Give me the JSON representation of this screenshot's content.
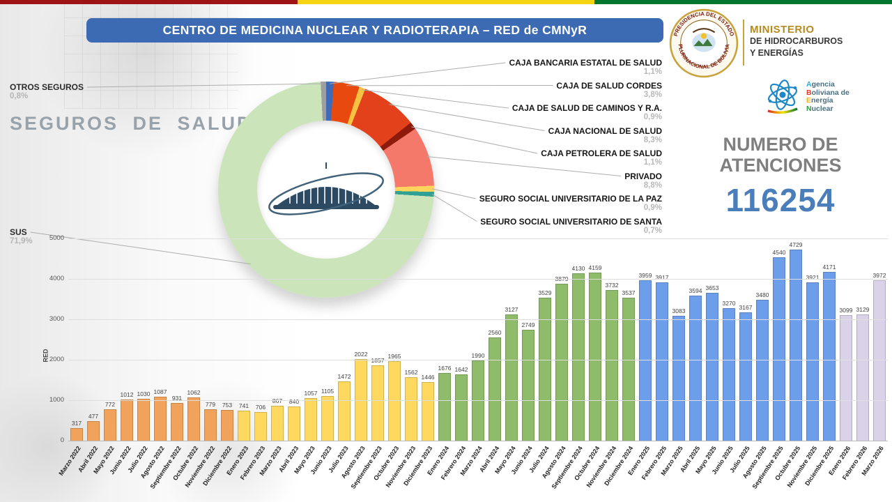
{
  "flag_strip": {
    "colors": [
      "#9E1313",
      "#F6D411",
      "#00792E"
    ]
  },
  "banner": {
    "title": "CENTRO DE MEDICINA NUCLEAR Y RADIOTERAPIA – RED de CMNyR",
    "bg_color": "#3C6BB3"
  },
  "ministry": {
    "seal_top": "PRESIDENCIA DEL ESTADO",
    "seal_bottom": "PLURINACIONAL DE BOLIVIA",
    "name_line1": "MINISTERIO",
    "name_line2": "DE HIDROCARBUROS",
    "name_line3": "Y ENERGÍAS",
    "accent_color": "#B58A1E"
  },
  "aben": {
    "words": [
      {
        "first": "A",
        "rest": "gencia",
        "color": "#29ABE2"
      },
      {
        "first": "B",
        "rest": "oliviana de",
        "color": "#E23A2E"
      },
      {
        "first": "E",
        "rest": "nergía",
        "color": "#F5B31C"
      },
      {
        "first": "N",
        "rest": "uclear",
        "color": "#2E9C42"
      }
    ],
    "text_color": "#4A6F80"
  },
  "atenciones": {
    "line1": "NUMERO DE",
    "line2": "ATENCIONES",
    "value": "116254",
    "value_color": "#4A7EBB"
  },
  "chart_data": [
    {
      "type": "pie",
      "title": "SEGUROS DE SALUD",
      "legend_position": "right",
      "segments": [
        {
          "label": "CAJA BANCARIA ESTATAL DE SALUD",
          "pct": 1.1,
          "pct_display": "1,1%",
          "color": "#3F6BB6",
          "legend": "right"
        },
        {
          "label": "CAJA DE SALUD CORDES",
          "pct": 3.8,
          "pct_display": "3,8%",
          "color": "#E8490F",
          "legend": "right"
        },
        {
          "label": "CAJA DE SALUD DE CAMINOS Y R.A.",
          "pct": 0.9,
          "pct_display": "0,9%",
          "color": "#F5C242",
          "legend": "right"
        },
        {
          "label": "CAJA NACIONAL DE SALUD",
          "pct": 8.3,
          "pct_display": "8,3%",
          "color": "#E2411B",
          "legend": "right"
        },
        {
          "label": "CAJA PETROLERA DE SALUD",
          "pct": 1.1,
          "pct_display": "1,1%",
          "color": "#8E1A0C",
          "legend": "right"
        },
        {
          "label": "PRIVADO",
          "pct": 8.8,
          "pct_display": "8,8%",
          "color": "#F4796B",
          "legend": "right"
        },
        {
          "label": "SEGURO SOCIAL UNIVERSITARIO DE LA PAZ",
          "pct": 0.9,
          "pct_display": "0,9%",
          "color": "#FFD35C",
          "legend": "right"
        },
        {
          "label": "SEGURO SOCIAL UNIVERSITARIO DE SANTA",
          "pct": 0.7,
          "pct_display": "0,7%",
          "color": "#2FA094",
          "legend": "right"
        },
        {
          "label": "SUS",
          "pct": 71.9,
          "pct_display": "71,9%",
          "color": "#CBE4BA",
          "legend": "left-bottom"
        },
        {
          "label": "OTROS SEGUROS",
          "pct": 0.8,
          "pct_display": "0,8%",
          "color": "#9E9E9E",
          "legend": "left-top"
        }
      ]
    },
    {
      "type": "bar",
      "ylabel": "RED",
      "ylim": [
        0,
        5000
      ],
      "yticks": [
        0,
        1000,
        2000,
        3000,
        4000,
        5000
      ],
      "grid": true,
      "categories": [
        "Marzo 2022",
        "Abril 2022",
        "Mayo 2022",
        "Junio 2022",
        "Julio 2022",
        "Agosto 2022",
        "Septiembre 2022",
        "Octubre 2022",
        "Noviembre 2022",
        "Diciembre 2022",
        "Enero 2023",
        "Febrero 2023",
        "Marzo 2023",
        "Abril 2023",
        "Mayo 2023",
        "Junio 2023",
        "Julio 2023",
        "Agosto 2023",
        "Septiembre 2023",
        "Octubre 2023",
        "Noviembre 2023",
        "Diciembre 2023",
        "Enero 2024",
        "Febrero 2024",
        "Marzo 2024",
        "Abril 2024",
        "Mayo 2024",
        "Junio 2024",
        "Julio 2024",
        "Agosto 2024",
        "Septiembre 2024",
        "Octubre 2024",
        "Noviembre 2024",
        "Diciembre 2024",
        "Enero 2025",
        "Febrero 2025",
        "Marzo 2025",
        "Abril 2025",
        "Mayo 2025",
        "Junio 2025",
        "Julio 2025",
        "Agosto 2025",
        "Septiembre 2025",
        "Octubre 2025",
        "Noviembre 2025",
        "Diciembre 2025",
        "Enero 2026",
        "Febrero 2026",
        "Marzo 2026"
      ],
      "values": [
        317,
        477,
        772,
        1012,
        1030,
        1087,
        931,
        1062,
        779,
        753,
        741,
        706,
        867,
        840,
        1057,
        1105,
        1472,
        2022,
        1857,
        1965,
        1562,
        1446,
        1676,
        1642,
        1990,
        2560,
        3127,
        2749,
        3529,
        3879,
        4130,
        4159,
        3732,
        3537,
        3959,
        3917,
        3083,
        3594,
        3653,
        3270,
        3167,
        3480,
        4540,
        4729,
        3921,
        4171,
        3099,
        3129,
        3972
      ],
      "year_colors": {
        "2022": "#F2A35B",
        "2023": "#FFD95F",
        "2024": "#8FBC6B",
        "2025": "#6D9EEB",
        "2026": "#D9D2E9"
      }
    }
  ]
}
